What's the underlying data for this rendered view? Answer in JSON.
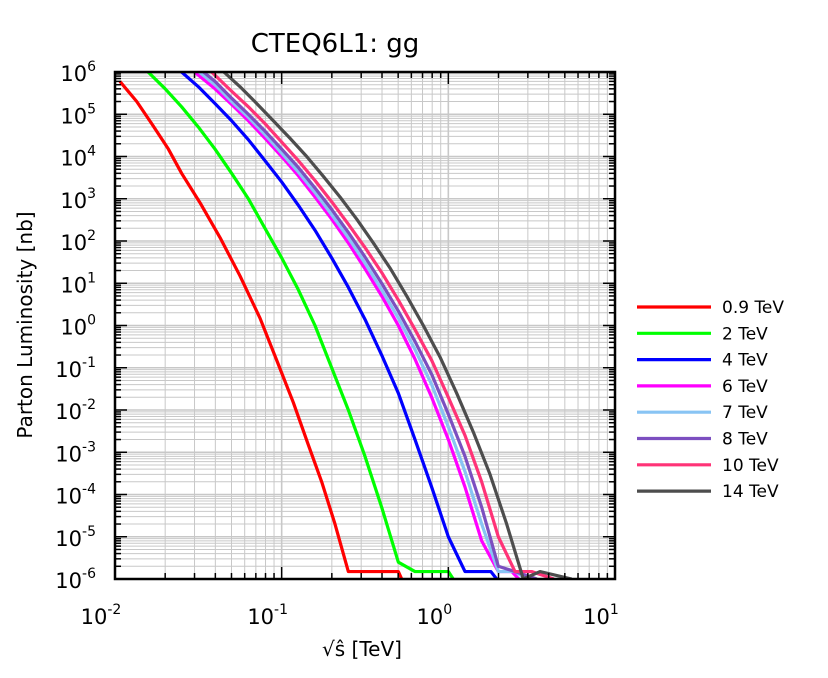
{
  "chart_data": {
    "type": "line",
    "title": "CTEQ6L1: gg",
    "xlabel_prefix": "√ŝ",
    "xlabel": "[TeV]",
    "ylabel": "Parton Luminosity [nb]",
    "x_scale": "log",
    "y_scale": "log",
    "xlim": [
      0.01,
      10
    ],
    "ylim": [
      1e-06,
      1000000
    ],
    "grid": true,
    "legend_position": "right",
    "x_ticks": [
      {
        "base": "10",
        "exp": "-2",
        "value": 0.01
      },
      {
        "base": "10",
        "exp": "-1",
        "value": 0.1
      },
      {
        "base": "10",
        "exp": "0",
        "value": 1
      },
      {
        "base": "10",
        "exp": "1",
        "value": 10
      }
    ],
    "y_ticks": [
      {
        "base": "10",
        "exp": "6",
        "value": 1000000
      },
      {
        "base": "10",
        "exp": "5",
        "value": 100000
      },
      {
        "base": "10",
        "exp": "4",
        "value": 10000
      },
      {
        "base": "10",
        "exp": "3",
        "value": 1000
      },
      {
        "base": "10",
        "exp": "2",
        "value": 100
      },
      {
        "base": "10",
        "exp": "1",
        "value": 10
      },
      {
        "base": "10",
        "exp": "0",
        "value": 1
      },
      {
        "base": "10",
        "exp": "-1",
        "value": 0.1
      },
      {
        "base": "10",
        "exp": "-2",
        "value": 0.01
      },
      {
        "base": "10",
        "exp": "-3",
        "value": 0.001
      },
      {
        "base": "10",
        "exp": "-4",
        "value": 0.0001
      },
      {
        "base": "10",
        "exp": "-5",
        "value": 1e-05
      },
      {
        "base": "10",
        "exp": "-6",
        "value": 1e-06
      }
    ],
    "series": [
      {
        "name": "0.9 TeV",
        "color": "#ff0000",
        "x": [
          0.0107,
          0.0135,
          0.0166,
          0.0209,
          0.0251,
          0.0324,
          0.0427,
          0.0562,
          0.0741,
          0.0955,
          0.1175,
          0.1445,
          0.1738,
          0.2089,
          0.2512,
          0.2951,
          0.3467,
          0.4074,
          0.4571,
          0.5012,
          0.525
        ],
        "y": [
          600000,
          200000,
          60000,
          15000,
          4000,
          800,
          120,
          15,
          1.5,
          0.12,
          0.015,
          0.0015,
          0.0002,
          2e-05,
          1.5e-06,
          1.5e-06,
          1.5e-06,
          1.5e-06,
          1.5e-06,
          1.5e-06,
          1e-06
        ]
      },
      {
        "name": "2 TeV",
        "color": "#00ff00",
        "x": [
          0.0158,
          0.02,
          0.0251,
          0.0316,
          0.0398,
          0.0501,
          0.0631,
          0.0794,
          0.1,
          0.1259,
          0.1585,
          0.1995,
          0.2512,
          0.3162,
          0.3981,
          0.5012,
          0.631,
          0.7943,
          0.9,
          1.0,
          1.07
        ],
        "y": [
          1000000,
          400000,
          150000,
          50000,
          15000,
          4000,
          1000,
          200,
          40,
          7,
          1,
          0.1,
          0.01,
          0.0008,
          5e-05,
          2.5e-06,
          1.5e-06,
          1.5e-06,
          1.5e-06,
          1.5e-06,
          1e-06
        ]
      },
      {
        "name": "4 TeV",
        "color": "#0000ff",
        "x": [
          0.0251,
          0.0316,
          0.0398,
          0.0501,
          0.0631,
          0.0794,
          0.1,
          0.1259,
          0.1585,
          0.1995,
          0.2512,
          0.3162,
          0.3981,
          0.5012,
          0.631,
          0.7943,
          1.0,
          1.2589,
          1.5849,
          1.8,
          1.95
        ],
        "y": [
          1000000,
          450000,
          180000,
          70000,
          25000,
          8000,
          2500,
          700,
          180,
          40,
          8,
          1.4,
          0.2,
          0.025,
          0.002,
          0.00015,
          1e-05,
          1.5e-06,
          1.5e-06,
          1.5e-06,
          1e-06
        ]
      },
      {
        "name": "6 TeV",
        "color": "#ff00ff",
        "x": [
          0.03,
          0.0398,
          0.0501,
          0.0631,
          0.0794,
          0.1,
          0.1259,
          0.1585,
          0.1995,
          0.2512,
          0.3162,
          0.3981,
          0.5012,
          0.631,
          0.7943,
          1.0,
          1.2589,
          1.5849,
          1.9953,
          2.4,
          2.65
        ],
        "y": [
          1000000,
          400000,
          170000,
          70000,
          27000,
          10000,
          3500,
          1100,
          330,
          90,
          22,
          5,
          1,
          0.16,
          0.02,
          0.002,
          0.00015,
          8e-06,
          1.5e-06,
          1.5e-06,
          1e-06
        ]
      },
      {
        "name": "7 TeV",
        "color": "#88c4f4",
        "x": [
          0.032,
          0.0398,
          0.0501,
          0.0631,
          0.0794,
          0.1,
          0.1259,
          0.1585,
          0.1995,
          0.2512,
          0.3162,
          0.3981,
          0.5012,
          0.631,
          0.7943,
          1.0,
          1.2589,
          1.5849,
          1.9953,
          2.5119,
          2.95
        ],
        "y": [
          1000000,
          500000,
          200000,
          85000,
          33000,
          12000,
          4300,
          1400,
          420,
          120,
          30,
          7,
          1.5,
          0.27,
          0.04,
          0.004,
          0.00035,
          2e-05,
          1.5e-06,
          1.5e-06,
          1e-06
        ]
      },
      {
        "name": "8 TeV",
        "color": "#7c4fc0",
        "x": [
          0.034,
          0.0398,
          0.0501,
          0.0631,
          0.0794,
          0.1,
          0.1259,
          0.1585,
          0.1995,
          0.2512,
          0.3162,
          0.3981,
          0.5012,
          0.631,
          0.7943,
          1.0,
          1.2589,
          1.5849,
          1.9953,
          2.5119,
          3.4
        ],
        "y": [
          1000000,
          600000,
          240000,
          100000,
          40000,
          15000,
          5500,
          1800,
          560,
          160,
          42,
          10,
          2.2,
          0.42,
          0.07,
          0.008,
          0.0008,
          5e-05,
          2e-06,
          1.5e-06,
          1e-06
        ]
      },
      {
        "name": "10 TeV",
        "color": "#ff3377",
        "x": [
          0.038,
          0.0501,
          0.0631,
          0.0794,
          0.1,
          0.1259,
          0.1585,
          0.1995,
          0.2512,
          0.3162,
          0.3981,
          0.5012,
          0.631,
          0.7943,
          1.0,
          1.2589,
          1.5849,
          1.9953,
          2.5119,
          3.1623,
          4.3
        ],
        "y": [
          1000000,
          350000,
          150000,
          60000,
          22000,
          8000,
          2700,
          850,
          250,
          70,
          18,
          4,
          0.8,
          0.15,
          0.02,
          0.0025,
          0.0002,
          1e-05,
          1.5e-06,
          1.5e-06,
          1e-06
        ]
      },
      {
        "name": "14 TeV",
        "color": "#4d4d4d",
        "x": [
          0.045,
          0.0562,
          0.0708,
          0.0891,
          0.1122,
          0.1413,
          0.1778,
          0.2239,
          0.2818,
          0.3548,
          0.4467,
          0.5623,
          0.7079,
          0.8913,
          1.122,
          1.4125,
          1.7783,
          2.2387,
          2.8184,
          3.5481,
          5.5
        ],
        "y": [
          1000000,
          450000,
          180000,
          70000,
          27000,
          10000,
          3400,
          1100,
          330,
          90,
          23,
          5,
          1,
          0.18,
          0.025,
          0.003,
          0.0003,
          2e-05,
          1e-06,
          1.5e-06,
          1e-06
        ]
      }
    ]
  }
}
